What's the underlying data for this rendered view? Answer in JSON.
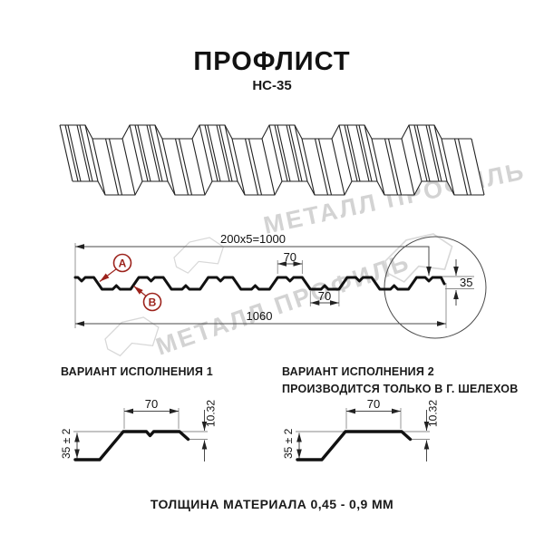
{
  "header": {
    "title": "ПРОФЛИСТ",
    "subtitle": "НС-35"
  },
  "watermark": {
    "brand": "МЕТАЛЛ ПРОФИЛЬ",
    "color": "#d3d3d3"
  },
  "drawing": {
    "dim_total_coverage": "200x5=1000",
    "dim_overall_width": "1060",
    "dim_height": "35",
    "dim_rib_top": "70",
    "dim_rib_bottom": "70",
    "label_a": "А",
    "label_b": "В",
    "accent_color": "#9c221b"
  },
  "variants": {
    "v1": {
      "title": "ВАРИАНТ ИСПОЛНЕНИЯ 1",
      "dim_top": "70",
      "dim_lip": "10.32",
      "dim_height": "35 ± 2"
    },
    "v2": {
      "title": "ВАРИАНТ ИСПОЛНЕНИЯ 2",
      "subtitle": "ПРОИЗВОДИТСЯ ТОЛЬКО В Г. ШЕЛЕХОВ",
      "dim_top": "70",
      "dim_lip": "10.32",
      "dim_height": "35 ± 2"
    }
  },
  "footer": {
    "text": "ТОЛЩИНА МАТЕРИАЛА 0,45 - 0,9 ММ"
  }
}
